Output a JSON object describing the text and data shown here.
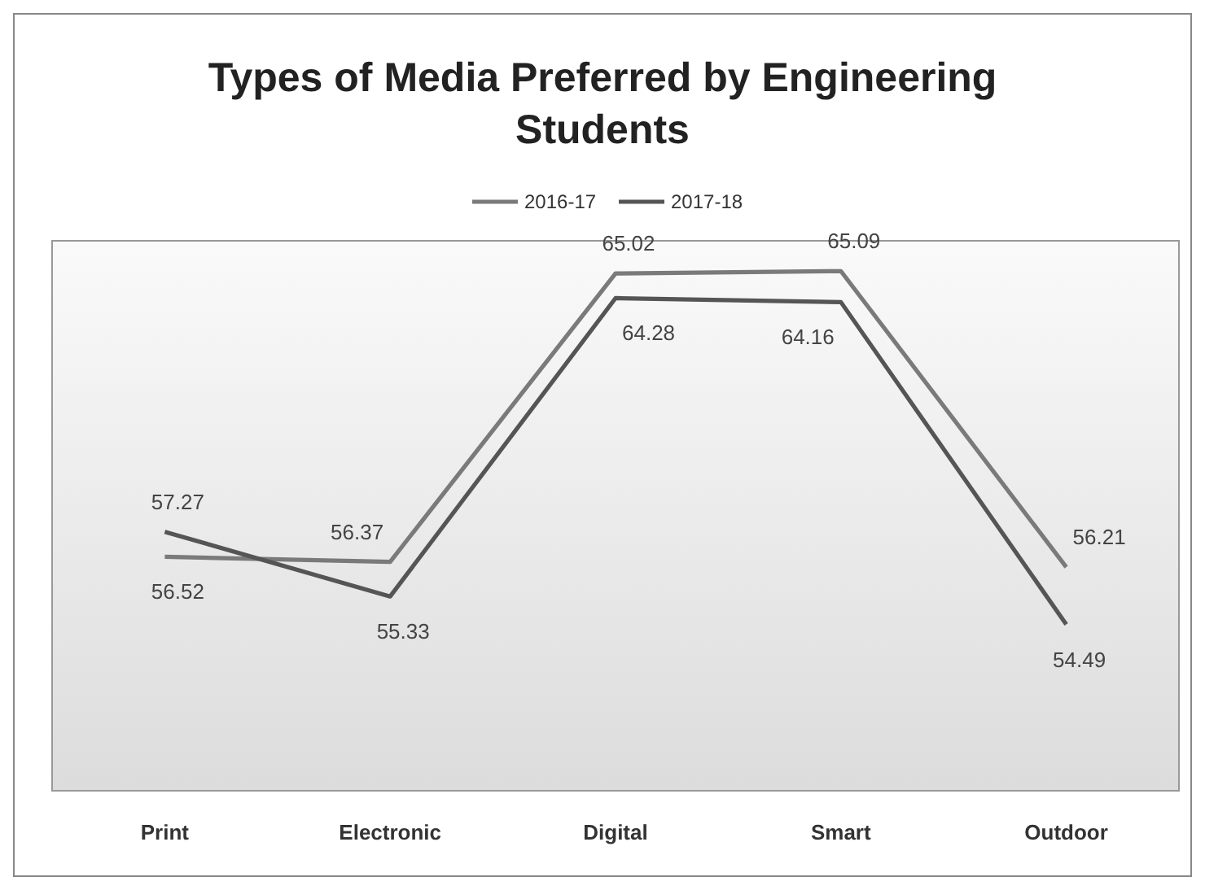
{
  "chart_data": {
    "type": "line",
    "title": "Types of Media Preferred by Engineering Students",
    "categories": [
      "Print",
      "Electronic",
      "Digital",
      "Smart",
      "Outdoor"
    ],
    "series": [
      {
        "name": "2016-17",
        "color": "#7a7a7a",
        "values": [
          56.52,
          56.37,
          65.02,
          65.09,
          56.21
        ]
      },
      {
        "name": "2017-18",
        "color": "#555555",
        "values": [
          57.27,
          55.33,
          64.28,
          64.16,
          54.49
        ]
      }
    ],
    "ylim": [
      49.5,
      66
    ],
    "data_labels": true,
    "legend": "top",
    "grid": false,
    "marker": "none",
    "line_style": "solid"
  }
}
